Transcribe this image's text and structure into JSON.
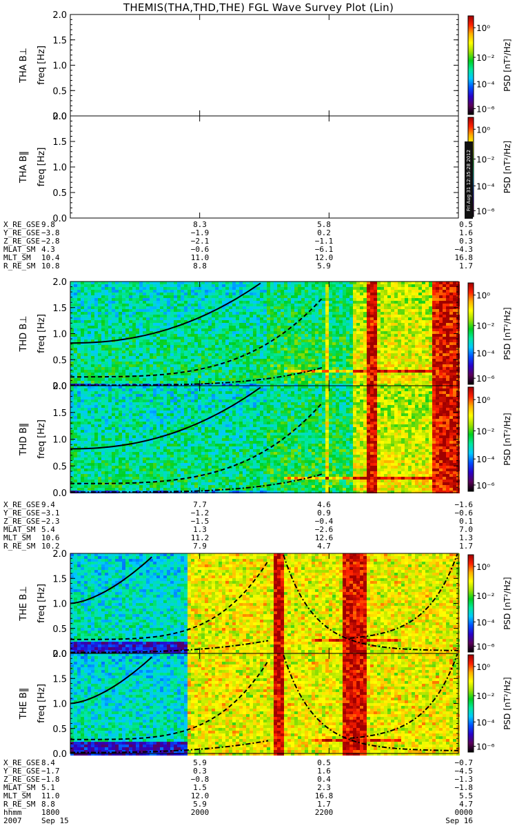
{
  "title": "THEMIS(THA,THD,THE) FGL Wave Survey Plot (Lin)",
  "stamp": "Fri Aug 31 12:35:28 2012",
  "colors": {
    "psd_scale": [
      "#000000",
      "#5a005a",
      "#2a00c8",
      "#0050ff",
      "#00c8ff",
      "#00e89c",
      "#00d020",
      "#a0e000",
      "#ffff00",
      "#ffb000",
      "#ff2000",
      "#a00000"
    ]
  },
  "chart_data": [
    {
      "type": "heatmap",
      "probe": "THA",
      "ylabel_a": "THA B⊥",
      "ylabel_b": "freq [Hz]",
      "y_ticks": [
        "0.0",
        "0.5",
        "1.0",
        "1.5",
        "2.0"
      ],
      "ylim": [
        0,
        2.0
      ],
      "cbar_label": "PSD [nT²/Hz]",
      "cbar_ticks": [
        "10⁰",
        "10⁻²",
        "10⁻⁴",
        "10⁻⁶"
      ],
      "data_present": false
    },
    {
      "type": "heatmap",
      "probe": "THA",
      "ylabel_a": "THA B‖",
      "ylabel_b": "freq [Hz]",
      "y_ticks": [
        "0.0",
        "0.5",
        "1.0",
        "1.5",
        "2.0"
      ],
      "ylim": [
        0,
        2.0
      ],
      "cbar_label": "PSD [nT²/Hz]",
      "cbar_ticks": [
        "10⁰",
        "10⁻²",
        "10⁻⁴",
        "10⁻⁶"
      ],
      "data_present": false
    },
    {
      "type": "heatmap",
      "probe": "THD",
      "ylabel_a": "THD B⊥",
      "ylabel_b": "freq [Hz]",
      "y_ticks": [
        "0.0",
        "0.5",
        "1.0",
        "1.5",
        "2.0"
      ],
      "ylim": [
        0,
        2.0
      ],
      "cbar_label": "PSD [nT²/Hz]",
      "cbar_ticks": [
        "10⁰",
        "10⁻²",
        "10⁻⁴",
        "10⁻⁶"
      ],
      "data_present": true,
      "mode": "d"
    },
    {
      "type": "heatmap",
      "probe": "THD",
      "ylabel_a": "THD B‖",
      "ylabel_b": "freq [Hz]",
      "y_ticks": [
        "0.0",
        "0.5",
        "1.0",
        "1.5",
        "2.0"
      ],
      "ylim": [
        0,
        2.0
      ],
      "cbar_label": "PSD [nT²/Hz]",
      "cbar_ticks": [
        "10⁰",
        "10⁻²",
        "10⁻⁴",
        "10⁻⁶"
      ],
      "data_present": true,
      "mode": "d"
    },
    {
      "type": "heatmap",
      "probe": "THE",
      "ylabel_a": "THE B⊥",
      "ylabel_b": "freq [Hz]",
      "y_ticks": [
        "0.0",
        "0.5",
        "1.0",
        "1.5",
        "2.0"
      ],
      "ylim": [
        0,
        2.0
      ],
      "cbar_label": "PSD [nT²/Hz]",
      "cbar_ticks": [
        "10⁰",
        "10⁻²",
        "10⁻⁴",
        "10⁻⁶"
      ],
      "data_present": true,
      "mode": "e"
    },
    {
      "type": "heatmap",
      "probe": "THE",
      "ylabel_a": "THE B‖",
      "ylabel_b": "freq [Hz]",
      "y_ticks": [
        "0.0",
        "0.5",
        "1.0",
        "1.5",
        "2.0"
      ],
      "ylim": [
        0,
        2.0
      ],
      "cbar_label": "PSD [nT²/Hz]",
      "cbar_ticks": [
        "10⁰",
        "10⁻²",
        "10⁻⁴",
        "10⁻⁶"
      ],
      "data_present": true,
      "mode": "e"
    }
  ],
  "ephemeris": [
    {
      "probe": "THA",
      "rows": [
        {
          "label": "X_RE_GSE",
          "values": [
            "9.8",
            "8.3",
            "5.8",
            "0.5"
          ]
        },
        {
          "label": "Y_RE_GSE",
          "values": [
            "−3.8",
            "−1.9",
            "0.2",
            "1.6"
          ]
        },
        {
          "label": "Z_RE_GSE",
          "values": [
            "−2.8",
            "−2.1",
            "−1.1",
            "0.3"
          ]
        },
        {
          "label": "MLAT_SM",
          "values": [
            "4.3",
            "−0.6",
            "−6.1",
            "−4.3"
          ]
        },
        {
          "label": "MLT_SM",
          "values": [
            "10.4",
            "11.0",
            "12.0",
            "16.8"
          ]
        },
        {
          "label": "R_RE_SM",
          "values": [
            "10.8",
            "8.8",
            "5.9",
            "1.7"
          ]
        }
      ]
    },
    {
      "probe": "THD",
      "rows": [
        {
          "label": "X_RE_GSE",
          "values": [
            "9.4",
            "7.7",
            "4.6",
            "−1.6"
          ]
        },
        {
          "label": "Y_RE_GSE",
          "values": [
            "−3.1",
            "−1.2",
            "0.9",
            "−0.6"
          ]
        },
        {
          "label": "Z_RE_GSE",
          "values": [
            "−2.3",
            "−1.5",
            "−0.4",
            "0.1"
          ]
        },
        {
          "label": "MLAT_SM",
          "values": [
            "5.4",
            "1.3",
            "−2.6",
            "7.0"
          ]
        },
        {
          "label": "MLT_SM",
          "values": [
            "10.6",
            "11.2",
            "12.6",
            "1.3"
          ]
        },
        {
          "label": "R_RE_SM",
          "values": [
            "10.2",
            "7.9",
            "4.7",
            "1.7"
          ]
        }
      ]
    },
    {
      "probe": "THE",
      "rows": [
        {
          "label": "X_RE_GSE",
          "values": [
            "8.4",
            "5.9",
            "0.5",
            "−0.7"
          ]
        },
        {
          "label": "Y_RE_GSE",
          "values": [
            "−1.7",
            "0.3",
            "1.6",
            "−4.5"
          ]
        },
        {
          "label": "Z_RE_GSE",
          "values": [
            "−1.8",
            "−0.8",
            "0.4",
            "−1.3"
          ]
        },
        {
          "label": "MLAT_SM",
          "values": [
            "5.1",
            "1.5",
            "2.3",
            "−1.8"
          ]
        },
        {
          "label": "MLT_SM",
          "values": [
            "11.0",
            "12.0",
            "16.8",
            "5.5"
          ]
        },
        {
          "label": "R_RE_SM",
          "values": [
            "8.8",
            "5.9",
            "1.7",
            "4.7"
          ]
        },
        {
          "label": "hhmm",
          "values": [
            "1800",
            "2000",
            "2200",
            "0000"
          ]
        },
        {
          "label": "2007",
          "values": [
            "Sep 15",
            "",
            "",
            "Sep 16"
          ]
        }
      ]
    }
  ]
}
